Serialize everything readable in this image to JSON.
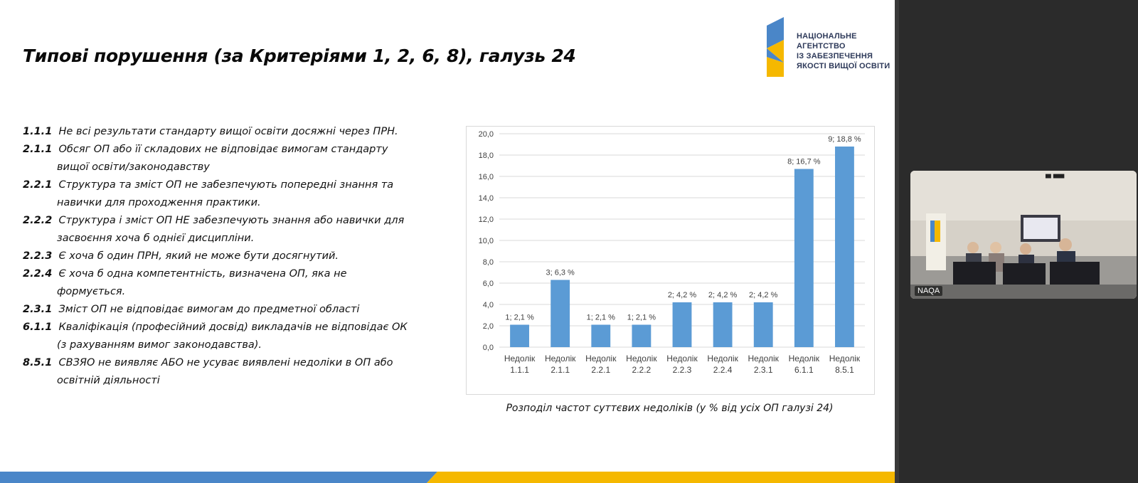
{
  "slide": {
    "title": "Типові порушення (за Критеріями 1, 2, 6, 8), галузь 24",
    "logo": {
      "icon": "naqa-logo",
      "lines": [
        "НАЦІОНАЛЬНЕ",
        "АГЕНТСТВО",
        "ІЗ ЗАБЕЗПЕЧЕННЯ",
        "ЯКОСТІ ВИЩОЇ ОСВІТИ"
      ],
      "colors": {
        "blue": "#4a86c8",
        "yellow": "#f5b800"
      }
    },
    "items": [
      {
        "code": "1.1.1",
        "lines": [
          "Не всі результати стандарту вищої освіти досяжні через ПРН."
        ]
      },
      {
        "code": "2.1.1",
        "lines": [
          "Обсяг ОП або її складових не відповідає вимогам стандарту",
          "вищої освіти/законодавству"
        ]
      },
      {
        "code": "2.2.1",
        "lines": [
          "Структура та зміст ОП не забезпечують попередні знання та",
          "навички для проходження практики."
        ]
      },
      {
        "code": "2.2.2",
        "lines": [
          "Структура і зміст ОП НЕ забезпечують знання або навички для",
          "засвоєння хоча б однієї дисципліни."
        ]
      },
      {
        "code": "2.2.3",
        "lines": [
          "Є хоча б один ПРН, який не може бути досягнутий."
        ]
      },
      {
        "code": "2.2.4",
        "lines": [
          "Є хоча б одна компетентність, визначена ОП, яка не",
          "формується."
        ]
      },
      {
        "code": "2.3.1",
        "lines": [
          "Зміст ОП не відповідає вимогам до предметної області"
        ]
      },
      {
        "code": "6.1.1",
        "lines": [
          "Кваліфікація (професійний досвід) викладачів не відповідає ОК",
          "(з рахуванням вимог законодавства)."
        ]
      },
      {
        "code": "8.5.1",
        "lines": [
          "СВЗЯО не виявляє АБО не усуває виявлені недоліки в ОП або",
          "освітній діяльності"
        ]
      }
    ],
    "chart_caption": "Розподіл частот суттєвих недоліків (у % від усіх ОП галузі 24)"
  },
  "video": {
    "label": "NAQA"
  },
  "colors": {
    "bar": "#5b9bd5",
    "stripe_blue": "#4a86c8",
    "stripe_yellow": "#f5b800"
  },
  "chart_data": {
    "type": "bar",
    "categories": [
      "Недолік 1.1.1",
      "Недолік 2.1.1",
      "Недолік 2.2.1",
      "Недолік 2.2.2",
      "Недолік 2.2.3",
      "Недолік 2.2.4",
      "Недолік 2.3.1",
      "Недолік 6.1.1",
      "Недолік 8.5.1"
    ],
    "category_lines": [
      [
        "Недолік",
        "1.1.1"
      ],
      [
        "Недолік",
        "2.1.1"
      ],
      [
        "Недолік",
        "2.2.1"
      ],
      [
        "Недолік",
        "2.2.2"
      ],
      [
        "Недолік",
        "2.2.3"
      ],
      [
        "Недолік",
        "2.2.4"
      ],
      [
        "Недолік",
        "2.3.1"
      ],
      [
        "Недолік",
        "6.1.1"
      ],
      [
        "Недолік",
        "8.5.1"
      ]
    ],
    "values": [
      2.1,
      6.3,
      2.1,
      2.1,
      4.2,
      4.2,
      4.2,
      16.7,
      18.8
    ],
    "data_labels": [
      "1; 2,1 %",
      "3; 6,3 %",
      "1; 2,1 %",
      "1; 2,1 %",
      "2; 4,2 %",
      "2; 4,2 %",
      "2; 4,2 %",
      "8; 16,7 %",
      "9; 18,8 %"
    ],
    "yticks": [
      "0,0",
      "2,0",
      "4,0",
      "6,0",
      "8,0",
      "10,0",
      "12,0",
      "14,0",
      "16,0",
      "18,0",
      "20,0"
    ],
    "ylim": [
      0,
      20
    ],
    "grid": true,
    "title": "",
    "xlabel": "",
    "ylabel": ""
  }
}
